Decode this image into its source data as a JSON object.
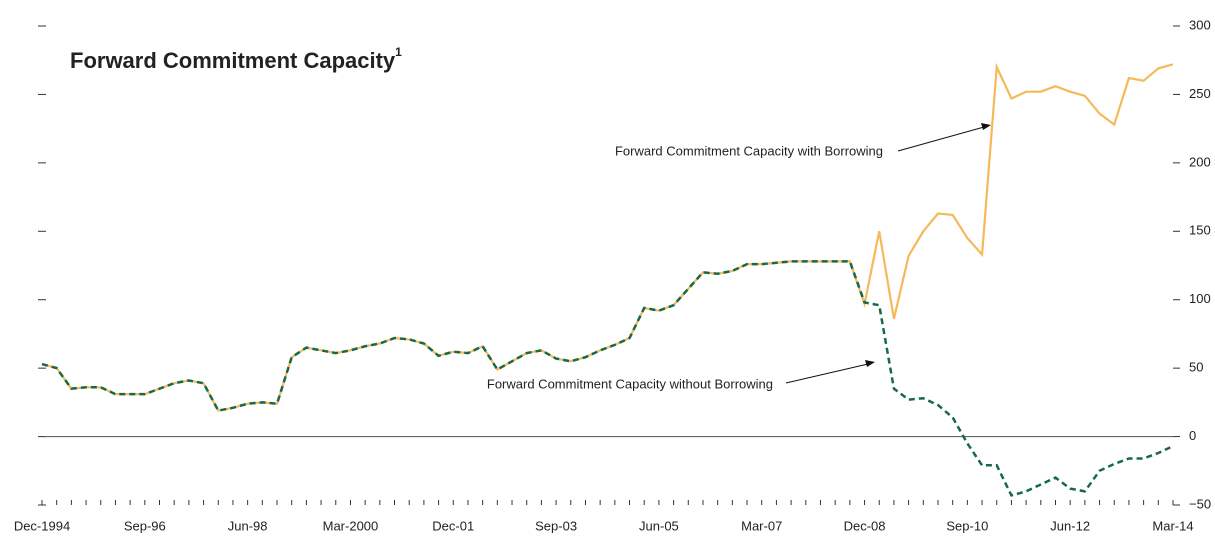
{
  "chart_data": {
    "type": "line",
    "title": "Forward Commitment Capacity",
    "title_note": "1",
    "categories": [
      "Dec-1994",
      null,
      null,
      null,
      null,
      null,
      null,
      "Sep-96",
      null,
      null,
      null,
      null,
      null,
      null,
      "Jun-98",
      null,
      null,
      null,
      null,
      null,
      null,
      "Mar-2000",
      null,
      null,
      null,
      null,
      null,
      null,
      "Dec-01",
      null,
      null,
      null,
      null,
      null,
      null,
      "Sep-03",
      null,
      null,
      null,
      null,
      null,
      null,
      "Jun-05",
      null,
      null,
      null,
      null,
      null,
      null,
      "Mar-07",
      null,
      null,
      null,
      null,
      null,
      null,
      "Dec-08",
      null,
      null,
      null,
      null,
      null,
      null,
      "Sep-10",
      null,
      null,
      null,
      null,
      null,
      null,
      "Jun-12",
      null,
      null,
      null,
      null,
      null,
      null,
      "Mar-14"
    ],
    "series": [
      {
        "name": "Forward Commitment Capacity with Borrowing",
        "color": "#f5b95a",
        "dashed": false,
        "values": [
          53,
          50,
          35,
          36,
          36,
          31,
          31,
          31,
          35,
          39,
          41,
          39,
          19,
          21,
          24,
          25,
          24,
          58,
          65,
          63,
          61,
          63,
          66,
          68,
          72,
          71,
          68,
          59,
          62,
          61,
          66,
          49,
          55,
          61,
          63,
          57,
          55,
          58,
          63,
          67,
          72,
          94,
          92,
          96,
          108,
          120,
          119,
          121,
          126,
          126,
          127,
          128,
          128,
          128,
          128,
          128,
          97,
          150,
          86,
          132,
          150,
          163,
          162,
          145,
          133,
          270,
          247,
          252,
          252,
          256,
          252,
          249,
          236,
          228,
          262,
          260,
          269,
          272
        ]
      },
      {
        "name": "Forward Commitment Capacity without Borrowing",
        "color": "#17694a",
        "dashed": true,
        "values": [
          53,
          50,
          35,
          36,
          36,
          31,
          31,
          31,
          35,
          39,
          41,
          39,
          19,
          21,
          24,
          25,
          24,
          58,
          65,
          63,
          61,
          63,
          66,
          68,
          72,
          71,
          68,
          59,
          62,
          61,
          66,
          49,
          55,
          61,
          63,
          57,
          55,
          58,
          63,
          67,
          72,
          94,
          92,
          96,
          108,
          120,
          119,
          121,
          126,
          126,
          127,
          128,
          128,
          128,
          128,
          128,
          98,
          96,
          35,
          27,
          28,
          23,
          14,
          -5,
          -21,
          -21,
          -43,
          -40,
          -35,
          -30,
          -38,
          -40,
          -25,
          -20,
          -16,
          -16,
          -12,
          -7
        ]
      }
    ],
    "ylim": [
      -50,
      300
    ],
    "yticks": [
      {
        "value": -50,
        "label": "−50"
      },
      0,
      50,
      100,
      150,
      200,
      250,
      300
    ],
    "zero_line": true
  }
}
